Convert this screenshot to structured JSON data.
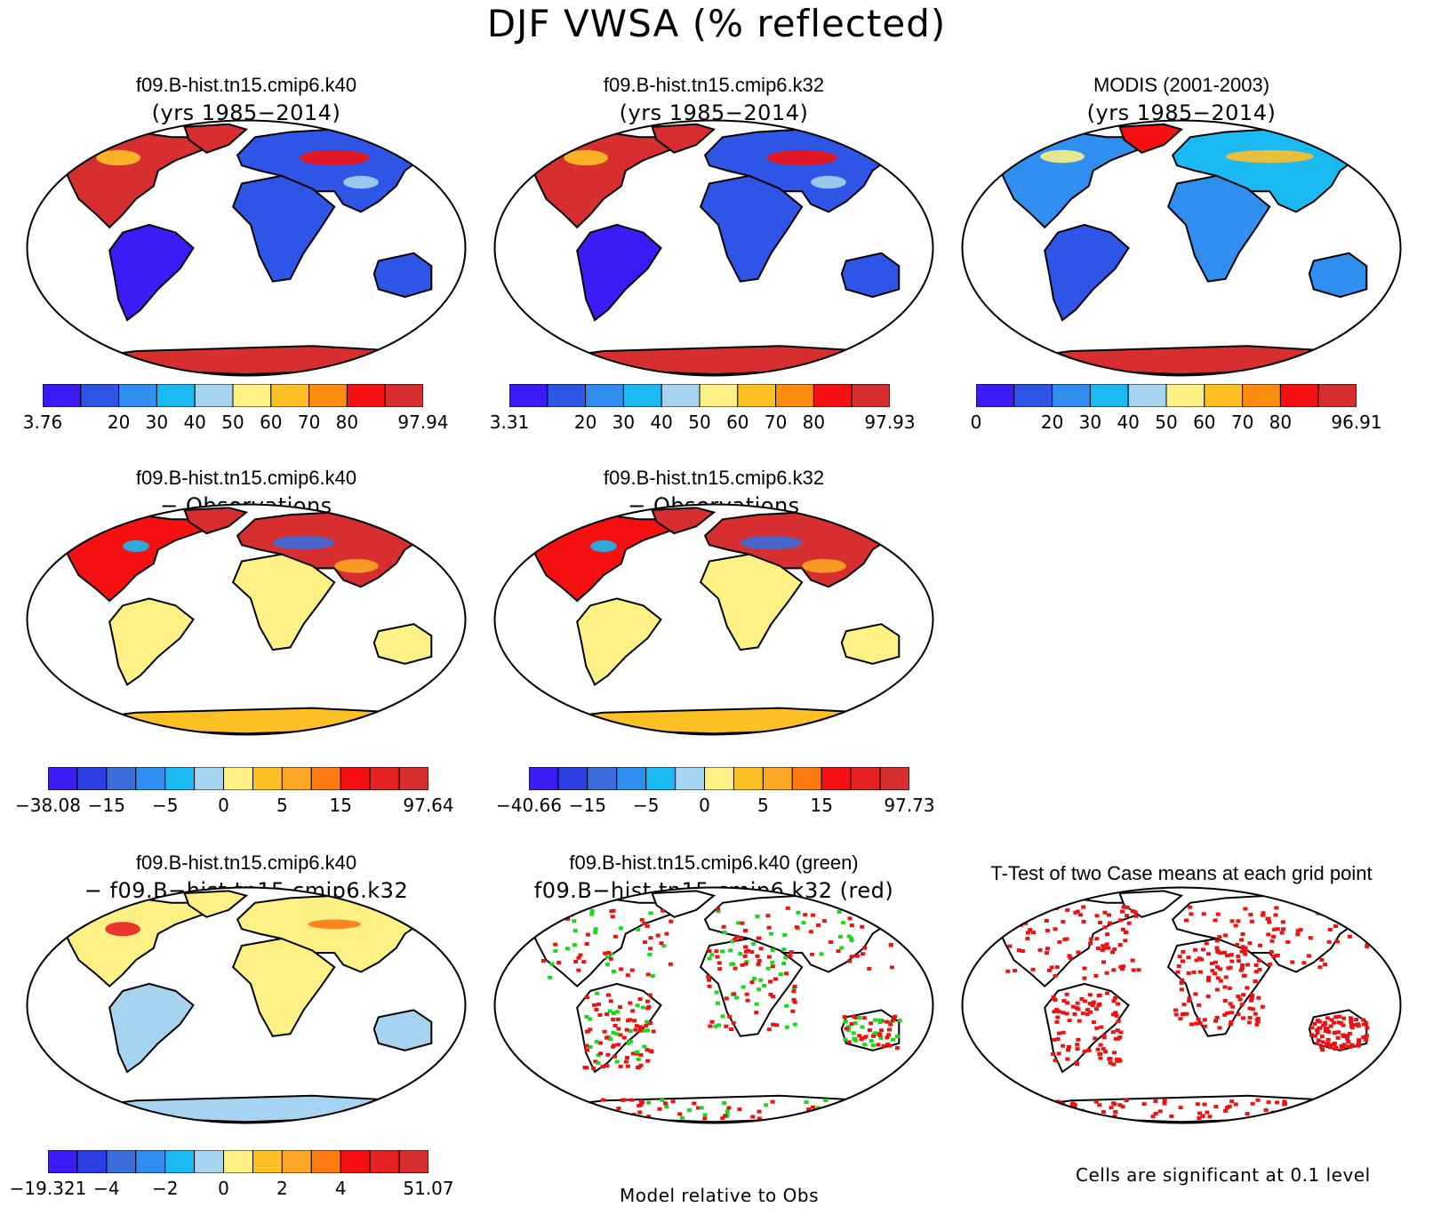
{
  "title": "DJF VWSA (% reflected)",
  "colors": {
    "palette_main": [
      "#3b1cf5",
      "#2f55e6",
      "#2f8ef0",
      "#1ab9f2",
      "#a6d3ef",
      "#fdf186",
      "#fdc126",
      "#fd8c11",
      "#f51111",
      "#d72f2f"
    ],
    "palette_diff": [
      "#3b1cf5",
      "#2b3ee2",
      "#3b6cdb",
      "#2f8ef0",
      "#1ab9f2",
      "#a6d3ef",
      "#fdf186",
      "#fdc126",
      "#fda524",
      "#fd7a11",
      "#f51111",
      "#e62121",
      "#d72f2f"
    ],
    "ocean": "#ffffff",
    "coast": "#000000",
    "sig_red": "#ee1111",
    "sig_green": "#18d818"
  },
  "panels": [
    {
      "title1": "f09.B-hist.tn15.cmip6.k40",
      "title2": "(yrs 1985−2014)",
      "fill": "pattern_high"
    },
    {
      "title1": "f09.B-hist.tn15.cmip6.k32",
      "title2": "(yrs 1985−2014)",
      "fill": "pattern_high"
    },
    {
      "title1": "MODIS (2001-2003)",
      "title2": "(yrs 1985−2014)",
      "fill": "pattern_obs"
    },
    {
      "title1": "f09.B-hist.tn15.cmip6.k40",
      "title2": "− Observations",
      "fill": "pattern_bias"
    },
    {
      "title1": "f09.B-hist.tn15.cmip6.k32",
      "title2": "− Observations",
      "fill": "pattern_bias"
    },
    {
      "title1": "f09.B-hist.tn15.cmip6.k40",
      "title2": "− f09.B−hist.tn15.cmip6.k32",
      "fill": "pattern_diff"
    },
    {
      "title1": "f09.B-hist.tn15.cmip6.k40 (green)",
      "title2": "f09.B−hist.tn15.cmip6.k32 (red)",
      "fill": "pattern_sig2"
    },
    {
      "title1": "T-Test of two Case means at each grid point",
      "title2": "",
      "fill": "pattern_sig1"
    }
  ],
  "colorbars": [
    {
      "palette": "palette_main",
      "labels": [
        "3.76",
        "20",
        "30",
        "40",
        "50",
        "60",
        "70",
        "80",
        "97.94"
      ]
    },
    {
      "palette": "palette_main",
      "labels": [
        "3.31",
        "20",
        "30",
        "40",
        "50",
        "60",
        "70",
        "80",
        "97.93"
      ]
    },
    {
      "palette": "palette_main",
      "labels": [
        "0",
        "20",
        "30",
        "40",
        "50",
        "60",
        "70",
        "80",
        "96.91"
      ]
    },
    {
      "palette": "palette_diff",
      "labels": [
        "−38.08",
        "−15",
        "−5",
        "0",
        "5",
        "15",
        "97.64"
      ]
    },
    {
      "palette": "palette_diff",
      "labels": [
        "−40.66",
        "−15",
        "−5",
        "0",
        "5",
        "15",
        "97.73"
      ]
    },
    {
      "palette": "palette_diff",
      "labels": [
        "−19.321",
        "−4",
        "−2",
        "0",
        "2",
        "4",
        "51.07"
      ]
    }
  ],
  "notes": {
    "model_relative": "Model relative to Obs",
    "significance": "Cells are significant at 0.1 level"
  },
  "chart_data": [
    {
      "type": "heatmap",
      "title": "f09.B-hist.tn15.cmip6.k40 (yrs 1985−2014)",
      "colorbar_ticks": [
        3.76,
        20,
        30,
        40,
        50,
        60,
        70,
        80,
        97.94
      ]
    },
    {
      "type": "heatmap",
      "title": "f09.B-hist.tn15.cmip6.k32 (yrs 1985−2014)",
      "colorbar_ticks": [
        3.31,
        20,
        30,
        40,
        50,
        60,
        70,
        80,
        97.93
      ]
    },
    {
      "type": "heatmap",
      "title": "MODIS (2001-2003) (yrs 1985−2014)",
      "colorbar_ticks": [
        0,
        20,
        30,
        40,
        50,
        60,
        70,
        80,
        96.91
      ]
    },
    {
      "type": "heatmap",
      "title": "f09.B-hist.tn15.cmip6.k40 − Observations",
      "colorbar_ticks": [
        -38.08,
        -15,
        -5,
        0,
        5,
        15,
        97.64
      ]
    },
    {
      "type": "heatmap",
      "title": "f09.B-hist.tn15.cmip6.k32 − Observations",
      "colorbar_ticks": [
        -40.66,
        -15,
        -5,
        0,
        5,
        15,
        97.73
      ]
    },
    {
      "type": "heatmap",
      "title": "f09.B-hist.tn15.cmip6.k40 − f09.B−hist.tn15.cmip6.k32",
      "colorbar_ticks": [
        -19.321,
        -4,
        -2,
        0,
        2,
        4,
        51.07
      ]
    },
    {
      "type": "heatmap",
      "title": "f09.B-hist.tn15.cmip6.k40 (green) f09.B−hist.tn15.cmip6.k32 (red)"
    },
    {
      "type": "heatmap",
      "title": "T-Test of two Case means at each grid point"
    }
  ]
}
